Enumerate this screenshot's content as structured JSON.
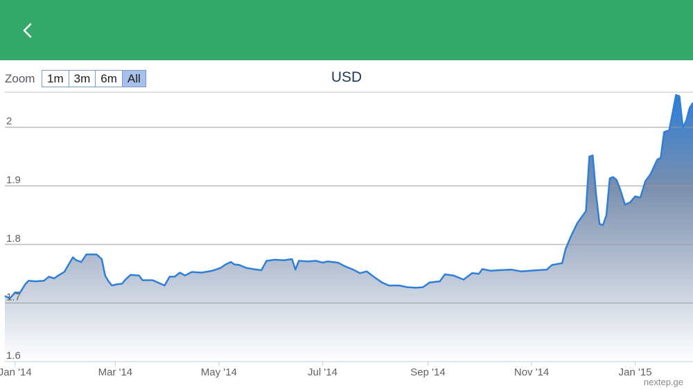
{
  "header": {
    "back_icon": "chevron-left-icon",
    "color": "#34a86a"
  },
  "zoom": {
    "label": "Zoom",
    "buttons": [
      "1m",
      "3m",
      "6m",
      "All"
    ],
    "selected": "All"
  },
  "credit": "nextep.ge",
  "chart_data": {
    "type": "area",
    "title": "USD",
    "xlabel": "",
    "ylabel": "",
    "ylim": [
      1.6,
      2.06
    ],
    "yticks": [
      1.6,
      1.7,
      1.8,
      1.9,
      2.0
    ],
    "ytick_labels": [
      "1.6",
      "1.7",
      "1.8",
      "1.9",
      "2"
    ],
    "xticks": [
      "2014-01-01",
      "2014-03-01",
      "2014-05-01",
      "2014-07-01",
      "2014-09-01",
      "2014-11-01",
      "2015-01-01"
    ],
    "xtick_labels": [
      "Jan '14",
      "Mar '14",
      "May '14",
      "Jul '14",
      "Sep '14",
      "Nov '14",
      "Jan '15"
    ],
    "grid": true,
    "line_color": "#2f7ed8",
    "series": [
      {
        "points": [
          [
            "2013-12-26",
            1.712
          ],
          [
            "2013-12-29",
            1.708
          ],
          [
            "2014-01-01",
            1.718
          ],
          [
            "2014-01-04",
            1.718
          ],
          [
            "2014-01-07",
            1.732
          ],
          [
            "2014-01-09",
            1.738
          ],
          [
            "2014-01-13",
            1.737
          ],
          [
            "2014-01-18",
            1.738
          ],
          [
            "2014-01-21",
            1.745
          ],
          [
            "2014-01-24",
            1.742
          ],
          [
            "2014-01-27",
            1.748
          ],
          [
            "2014-01-30",
            1.753
          ],
          [
            "2014-02-02",
            1.768
          ],
          [
            "2014-02-04",
            1.778
          ],
          [
            "2014-02-06",
            1.773
          ],
          [
            "2014-02-09",
            1.77
          ],
          [
            "2014-02-12",
            1.783
          ],
          [
            "2014-02-18",
            1.783
          ],
          [
            "2014-02-21",
            1.775
          ],
          [
            "2014-02-23",
            1.747
          ],
          [
            "2014-02-25",
            1.737
          ],
          [
            "2014-02-27",
            1.73
          ],
          [
            "2014-03-02",
            1.732
          ],
          [
            "2014-03-05",
            1.733
          ],
          [
            "2014-03-07",
            1.74
          ],
          [
            "2014-03-10",
            1.748
          ],
          [
            "2014-03-15",
            1.747
          ],
          [
            "2014-03-17",
            1.739
          ],
          [
            "2014-03-23",
            1.739
          ],
          [
            "2014-03-26",
            1.735
          ],
          [
            "2014-03-30",
            1.73
          ],
          [
            "2014-04-02",
            1.745
          ],
          [
            "2014-04-05",
            1.745
          ],
          [
            "2014-04-08",
            1.752
          ],
          [
            "2014-04-11",
            1.747
          ],
          [
            "2014-04-15",
            1.753
          ],
          [
            "2014-04-21",
            1.752
          ],
          [
            "2014-04-27",
            1.755
          ],
          [
            "2014-05-02",
            1.76
          ],
          [
            "2014-05-05",
            1.766
          ],
          [
            "2014-05-08",
            1.77
          ],
          [
            "2014-05-10",
            1.766
          ],
          [
            "2014-05-13",
            1.765
          ],
          [
            "2014-05-17",
            1.76
          ],
          [
            "2014-05-21",
            1.758
          ],
          [
            "2014-05-26",
            1.756
          ],
          [
            "2014-05-29",
            1.772
          ],
          [
            "2014-06-03",
            1.774
          ],
          [
            "2014-06-08",
            1.773
          ],
          [
            "2014-06-13",
            1.775
          ],
          [
            "2014-06-15",
            1.757
          ],
          [
            "2014-06-17",
            1.772
          ],
          [
            "2014-06-22",
            1.771
          ],
          [
            "2014-06-27",
            1.772
          ],
          [
            "2014-07-01",
            1.769
          ],
          [
            "2014-07-04",
            1.771
          ],
          [
            "2014-07-10",
            1.769
          ],
          [
            "2014-07-14",
            1.763
          ],
          [
            "2014-07-19",
            1.757
          ],
          [
            "2014-07-23",
            1.751
          ],
          [
            "2014-07-27",
            1.754
          ],
          [
            "2014-07-31",
            1.745
          ],
          [
            "2014-08-05",
            1.735
          ],
          [
            "2014-08-09",
            1.73
          ],
          [
            "2014-08-15",
            1.73
          ],
          [
            "2014-08-20",
            1.727
          ],
          [
            "2014-08-25",
            1.726
          ],
          [
            "2014-08-29",
            1.727
          ],
          [
            "2014-09-02",
            1.735
          ],
          [
            "2014-09-08",
            1.737
          ],
          [
            "2014-09-11",
            1.749
          ],
          [
            "2014-09-16",
            1.747
          ],
          [
            "2014-09-22",
            1.74
          ],
          [
            "2014-09-27",
            1.751
          ],
          [
            "2014-10-01",
            1.75
          ],
          [
            "2014-10-03",
            1.758
          ],
          [
            "2014-10-08",
            1.755
          ],
          [
            "2014-10-12",
            1.756
          ],
          [
            "2014-10-20",
            1.757
          ],
          [
            "2014-10-26",
            1.754
          ],
          [
            "2014-11-04",
            1.756
          ],
          [
            "2014-11-10",
            1.757
          ],
          [
            "2014-11-13",
            1.765
          ],
          [
            "2014-11-19",
            1.768
          ],
          [
            "2014-11-21",
            1.792
          ],
          [
            "2014-11-24",
            1.813
          ],
          [
            "2014-11-28",
            1.837
          ],
          [
            "2014-12-03",
            1.857
          ],
          [
            "2014-12-05",
            1.95
          ],
          [
            "2014-12-07",
            1.952
          ],
          [
            "2014-12-09",
            1.885
          ],
          [
            "2014-12-11",
            1.835
          ],
          [
            "2014-12-13",
            1.833
          ],
          [
            "2014-12-15",
            1.85
          ],
          [
            "2014-12-17",
            1.913
          ],
          [
            "2014-12-19",
            1.915
          ],
          [
            "2014-12-21",
            1.91
          ],
          [
            "2014-12-23",
            1.895
          ],
          [
            "2014-12-26",
            1.868
          ],
          [
            "2014-12-29",
            1.872
          ],
          [
            "2015-01-01",
            1.882
          ],
          [
            "2015-01-04",
            1.88
          ],
          [
            "2015-01-07",
            1.908
          ],
          [
            "2015-01-10",
            1.92
          ],
          [
            "2015-01-14",
            1.945
          ],
          [
            "2015-01-16",
            1.948
          ],
          [
            "2015-01-18",
            1.992
          ],
          [
            "2015-01-21",
            1.995
          ],
          [
            "2015-01-25",
            2.055
          ],
          [
            "2015-01-27",
            2.053
          ],
          [
            "2015-01-29",
            2.0
          ],
          [
            "2015-01-31",
            2.011
          ],
          [
            "2015-02-02",
            2.033
          ],
          [
            "2015-02-04",
            2.042
          ]
        ]
      }
    ]
  }
}
